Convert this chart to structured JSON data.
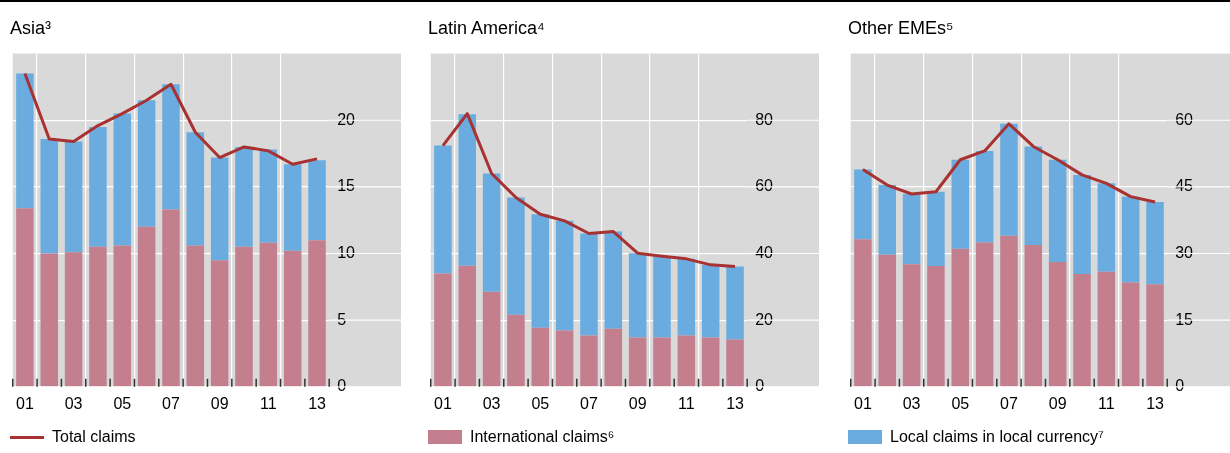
{
  "chart_data": [
    {
      "type": "bar",
      "title": "Asia³",
      "categories": [
        "01",
        null,
        "03",
        null,
        "05",
        null,
        "07",
        null,
        "09",
        null,
        "11",
        null,
        "13"
      ],
      "stacked": true,
      "ylim": [
        0,
        25
      ],
      "yticks": [
        0,
        5,
        10,
        15,
        20
      ],
      "grid": true,
      "legend": "bottom",
      "series": [
        {
          "color": "#c47f8f",
          "values": [
            13.4,
            10.0,
            10.1,
            10.5,
            10.6,
            12.0,
            13.3,
            10.6,
            9.5,
            10.5,
            10.8,
            10.2,
            11.0
          ]
        },
        {
          "color": "#6aace0",
          "values": [
            10.1,
            8.6,
            8.3,
            9.0,
            9.9,
            9.5,
            9.4,
            8.5,
            7.7,
            7.5,
            7.0,
            6.5,
            6.0
          ]
        },
        {
          "type": "line",
          "name": "Total claims",
          "color": "#a83232",
          "values": [
            23.5,
            18.6,
            18.4,
            19.6,
            20.5,
            21.5,
            22.7,
            19.1,
            17.2,
            18.0,
            17.7,
            16.7,
            17.1
          ]
        }
      ]
    },
    {
      "type": "bar",
      "title": "Latin America⁴",
      "categories": [
        "01",
        null,
        "03",
        null,
        "05",
        null,
        "07",
        null,
        "09",
        null,
        "11",
        null,
        "13"
      ],
      "stacked": true,
      "ylim": [
        0,
        100
      ],
      "yticks": [
        0,
        20,
        40,
        60,
        80
      ],
      "grid": true,
      "legend": "bottom",
      "series": [
        {
          "name": "International claims⁶",
          "color": "#c47f8f",
          "values": [
            34.0,
            36.3,
            28.5,
            21.6,
            17.7,
            16.9,
            15.4,
            17.4,
            14.8,
            14.8,
            15.4,
            14.8,
            14.2
          ]
        },
        {
          "color": "#6aace0",
          "values": [
            38.4,
            45.5,
            35.5,
            35.2,
            34.1,
            32.9,
            30.6,
            29.2,
            25.3,
            24.4,
            23.0,
            21.8,
            21.9
          ]
        },
        {
          "type": "line",
          "color": "#a83232",
          "values": [
            72.4,
            82.0,
            64.0,
            56.8,
            51.8,
            49.8,
            46.0,
            46.6,
            40.1,
            39.2,
            38.4,
            36.6,
            36.1
          ]
        }
      ]
    },
    {
      "type": "bar",
      "title": "Other EMEs⁵",
      "categories": [
        "01",
        null,
        "03",
        null,
        "05",
        null,
        "07",
        null,
        "09",
        null,
        "11",
        null,
        "13"
      ],
      "stacked": true,
      "ylim": [
        0,
        75
      ],
      "yticks": [
        0,
        15,
        30,
        45,
        60
      ],
      "grid": true,
      "legend": "bottom",
      "series": [
        {
          "color": "#c47f8f",
          "values": [
            33.2,
            29.7,
            27.6,
            27.2,
            31.1,
            32.5,
            34.0,
            31.9,
            28.1,
            25.4,
            25.9,
            23.5,
            23.1
          ]
        },
        {
          "name": "Local claims in local currency⁷",
          "color": "#6aace0",
          "values": [
            15.7,
            15.7,
            15.8,
            16.7,
            20.0,
            20.6,
            25.2,
            22.2,
            23.0,
            22.3,
            19.9,
            19.3,
            18.5
          ]
        },
        {
          "type": "line",
          "color": "#a83232",
          "values": [
            48.9,
            45.4,
            43.4,
            43.9,
            51.1,
            53.1,
            59.2,
            54.1,
            51.1,
            47.7,
            45.8,
            42.8,
            41.6
          ]
        }
      ]
    }
  ]
}
